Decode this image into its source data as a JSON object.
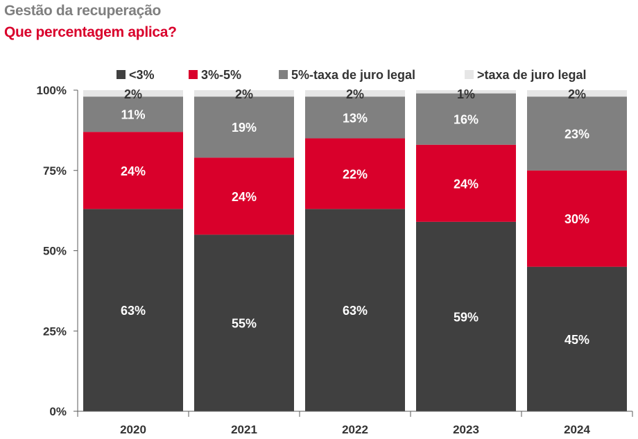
{
  "title": "Gestão da recuperação",
  "subtitle": "Que percentagem aplica?",
  "chart_data": {
    "type": "bar",
    "stacked": true,
    "categories": [
      "2020",
      "2021",
      "2022",
      "2023",
      "2024"
    ],
    "series": [
      {
        "name": "<3%",
        "color": "#404040",
        "values": [
          63,
          55,
          63,
          59,
          45
        ]
      },
      {
        "name": "3%-5%",
        "color": "#d9002b",
        "values": [
          24,
          24,
          22,
          24,
          30
        ]
      },
      {
        "name": "5%-taxa de juro legal",
        "color": "#808080",
        "values": [
          11,
          19,
          13,
          16,
          23
        ]
      },
      {
        "name": ">taxa de juro legal",
        "color": "#e6e6e6",
        "values": [
          2,
          2,
          2,
          1,
          2
        ]
      }
    ],
    "data_labels": [
      [
        "63%",
        "55%",
        "63%",
        "59%",
        "45%"
      ],
      [
        "24%",
        "24%",
        "22%",
        "24%",
        "30%"
      ],
      [
        "11%",
        "19%",
        "13%",
        "16%",
        "23%"
      ],
      [
        "2%",
        "2%",
        "2%",
        "1%",
        "2%"
      ]
    ],
    "yticks": [
      "0%",
      "25%",
      "50%",
      "75%",
      "100%"
    ],
    "ylim": [
      0,
      100
    ],
    "legend_position": "top",
    "grid": false
  }
}
